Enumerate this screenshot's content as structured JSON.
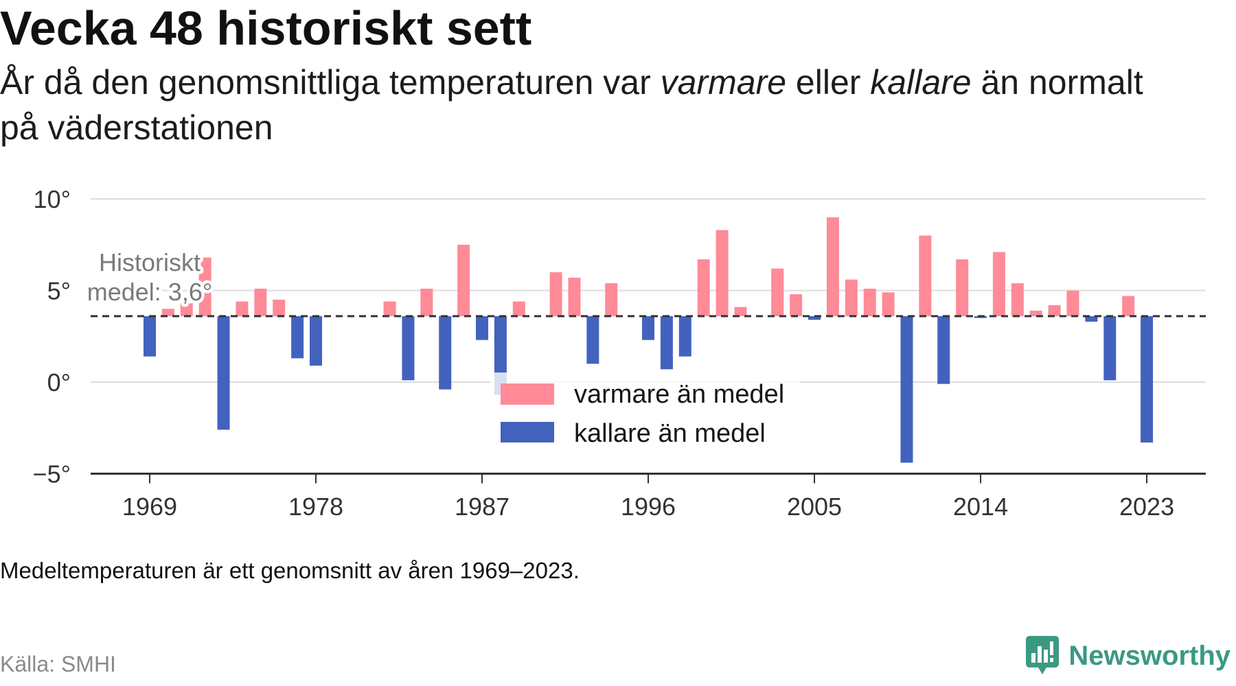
{
  "chart_data": {
    "type": "bar",
    "title": "Vecka 48 historiskt sett",
    "subtitle": {
      "text_before": "År då den genomsnittliga temperaturen var ",
      "warm": "varmare",
      "text_between": " eller ",
      "cold": "kallare",
      "text_after": " än normalt",
      "line2": "på väderstationen"
    },
    "x": [
      1969,
      1970,
      1971,
      1972,
      1973,
      1974,
      1975,
      1976,
      1977,
      1978,
      1979,
      1980,
      1981,
      1982,
      1983,
      1984,
      1985,
      1986,
      1987,
      1988,
      1989,
      1990,
      1991,
      1992,
      1993,
      1994,
      1995,
      1996,
      1997,
      1998,
      1999,
      2000,
      2001,
      2002,
      2003,
      2004,
      2005,
      2006,
      2007,
      2008,
      2009,
      2010,
      2011,
      2012,
      2013,
      2014,
      2015,
      2016,
      2017,
      2018,
      2019,
      2020,
      2021,
      2022,
      2023
    ],
    "values": [
      1.4,
      4.0,
      4.3,
      6.8,
      -2.6,
      4.4,
      5.1,
      4.5,
      1.3,
      0.9,
      null,
      null,
      null,
      4.4,
      0.1,
      5.1,
      -0.4,
      7.5,
      2.3,
      -0.7,
      4.4,
      null,
      6.0,
      5.7,
      1.0,
      5.4,
      null,
      2.3,
      0.7,
      1.4,
      6.7,
      8.3,
      4.1,
      null,
      6.2,
      4.8,
      3.4,
      9.0,
      5.6,
      5.1,
      4.9,
      -4.4,
      8.0,
      -0.1,
      6.7,
      3.5,
      7.1,
      5.4,
      3.9,
      4.2,
      5.0,
      3.3,
      0.1,
      4.7,
      -3.3
    ],
    "baseline": 3.6,
    "ylim": [
      -5,
      10
    ],
    "yticks": [
      {
        "value": 10,
        "label": "10°"
      },
      {
        "value": 5,
        "label": "5°"
      },
      {
        "value": 0,
        "label": "0°"
      },
      {
        "value": -5,
        "label": "−5°"
      }
    ],
    "xticks": [
      "1969",
      "1978",
      "1987",
      "1996",
      "2005",
      "2014",
      "2023"
    ],
    "grid": true,
    "mean_line_color": "#333333",
    "annotation": {
      "lines": [
        "Historiskt",
        "medel: 3,6°"
      ]
    },
    "legend": {
      "placement": "center",
      "items": [
        {
          "label": "varmare än medel",
          "color": "#ff8a98"
        },
        {
          "label": "kallare än medel",
          "color": "#4262be"
        }
      ]
    },
    "note": "Medeltemperaturen är ett genomsnitt av åren 1969–2023.",
    "source": "Källa: SMHI"
  },
  "brand": {
    "name": "Newsworthy",
    "color": "#3b9982",
    "icon": "newsworthy-logo-icon"
  }
}
